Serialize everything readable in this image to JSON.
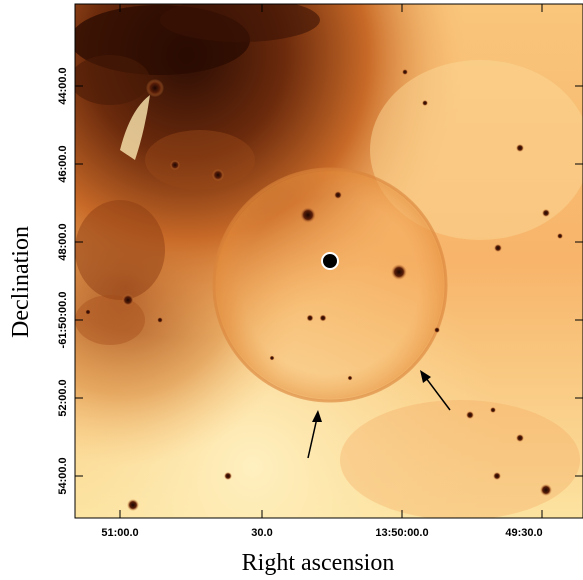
{
  "figure": {
    "x_axis_title": "Right ascension",
    "y_axis_title": "Declination",
    "x_tick_labels": [
      "51:00.0",
      "30.0",
      "13:50:00.0",
      "49:30.0"
    ],
    "y_tick_labels": [
      "44:00.0",
      "46:00.0",
      "48:00.0",
      "-61:50:00.0",
      "52:00.0",
      "54:00.0"
    ],
    "colors": {
      "background_light": "#fde8a6",
      "mid_orange": "#f5a85a",
      "dark_brown": "#3a1205",
      "frame": "#000000",
      "marker_fill": "#000000",
      "marker_ring": "#ffffff"
    },
    "colormap": "heat (dark brown to pale yellow)",
    "features": [
      "circular shell",
      "central source marker",
      "two arrows pointing to shell rim"
    ]
  }
}
